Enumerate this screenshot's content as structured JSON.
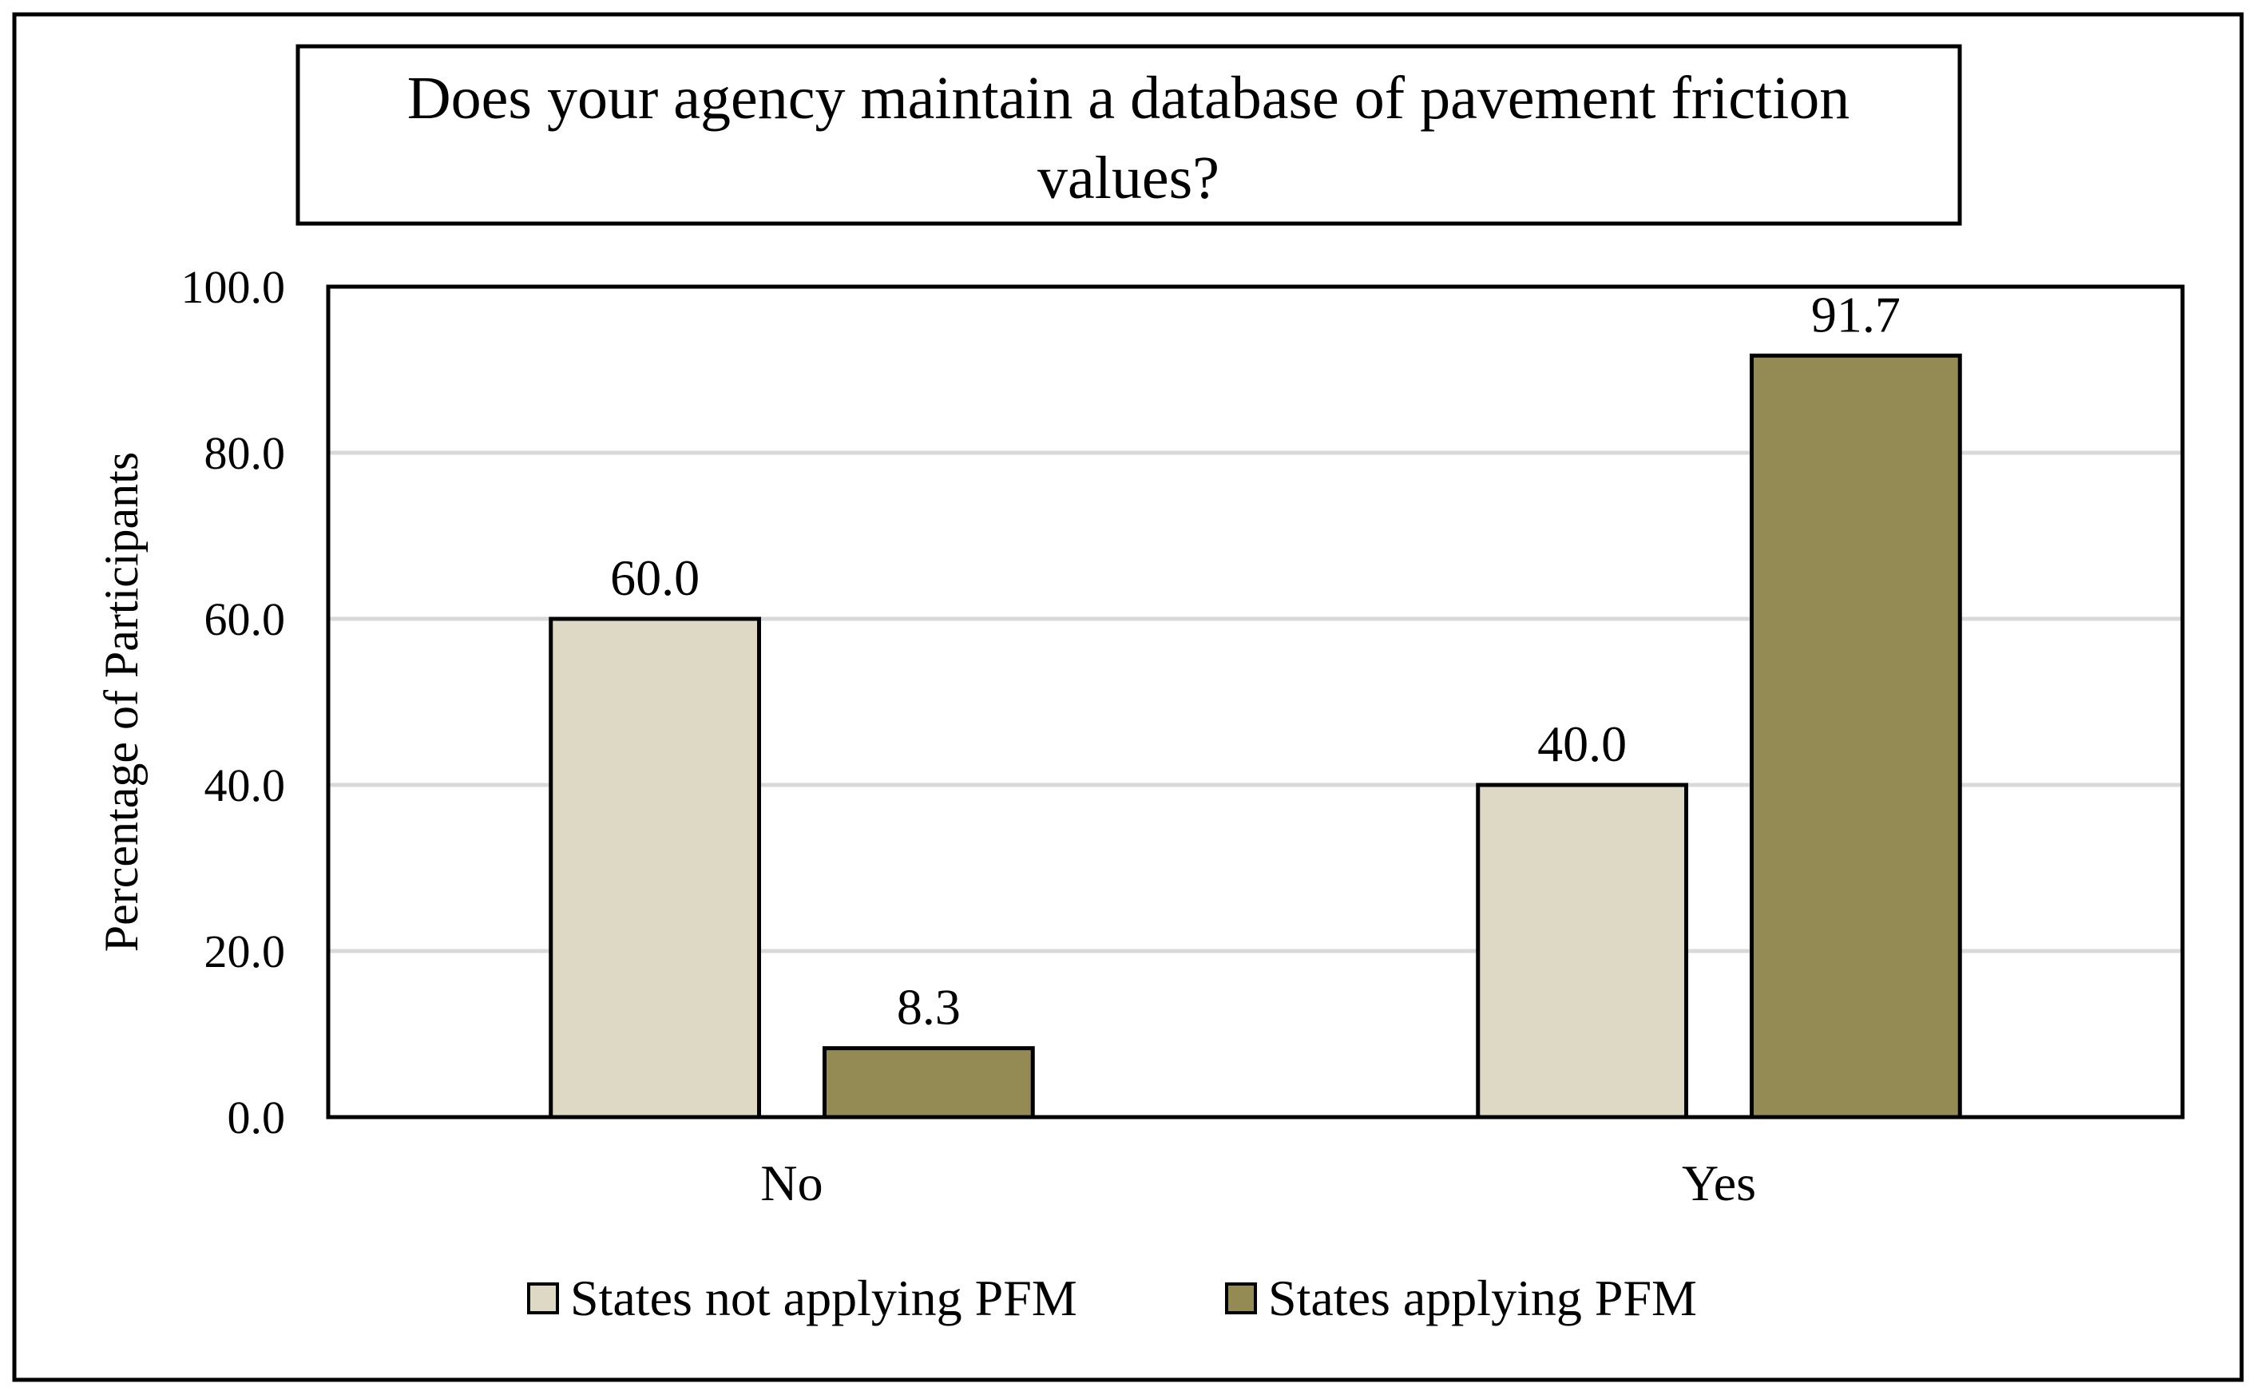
{
  "chart_data": {
    "type": "bar",
    "title": "Does your agency maintain a database of pavement friction values?",
    "title_lines": [
      "Does your agency maintain a database of pavement friction",
      "values?"
    ],
    "xlabel": "",
    "ylabel": "Percentage of Participants",
    "ylim": [
      0,
      100
    ],
    "yticks": [
      "0.0",
      "20.0",
      "40.0",
      "60.0",
      "80.0",
      "100.0"
    ],
    "grid": true,
    "legend_position": "bottom",
    "categories": [
      "No",
      "Yes"
    ],
    "series": [
      {
        "name": "States not applying PFM",
        "color": "#ddd9c4",
        "values": [
          60.0,
          40.0
        ],
        "labels": [
          "60.0",
          "40.0"
        ]
      },
      {
        "name": "States applying PFM",
        "color": "#948a54",
        "values": [
          8.3,
          91.7
        ],
        "labels": [
          "8.3",
          "91.7"
        ]
      }
    ]
  }
}
